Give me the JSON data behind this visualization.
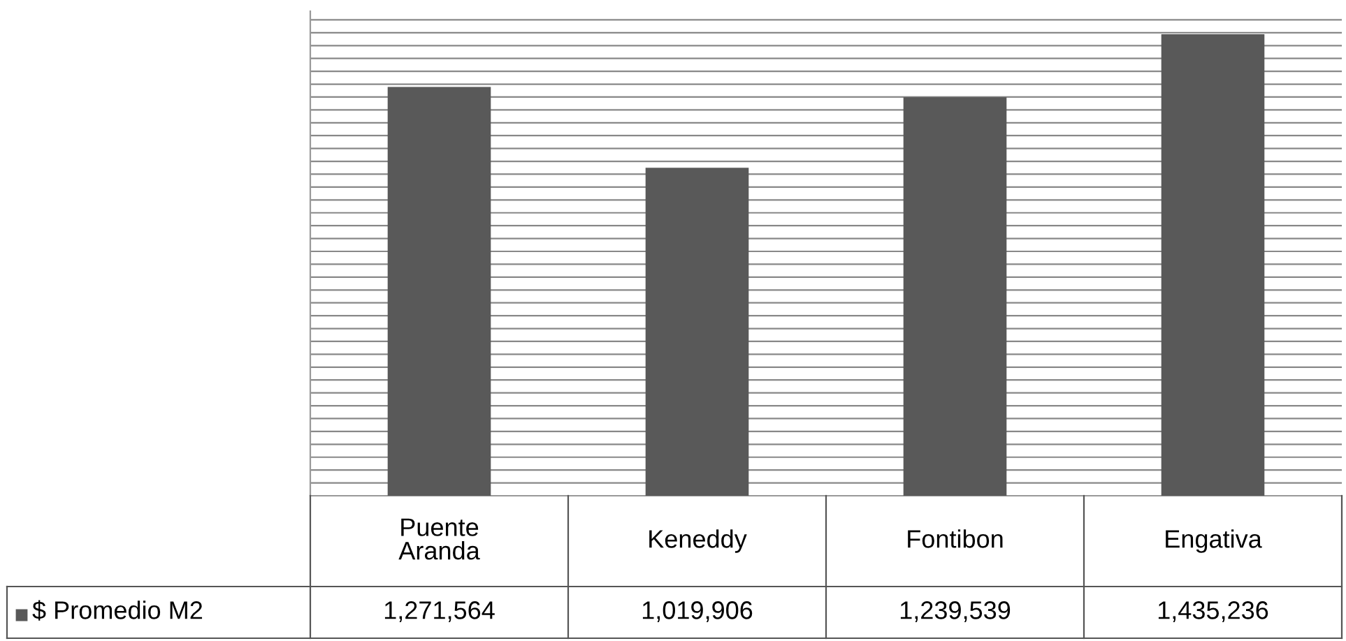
{
  "chart_data": {
    "type": "bar",
    "categories": [
      "Puente\nAranda",
      "Keneddy",
      "Fontibon",
      "Engativa"
    ],
    "series": [
      {
        "name": "$ Promedio M2",
        "color": "#595959",
        "values": [
          1271564,
          1019906,
          1239539,
          1435236
        ],
        "value_labels": [
          "1,271,564",
          "1,019,906",
          "1,239,539",
          "1,435,236"
        ]
      }
    ],
    "grid": "y",
    "legend": "bottom"
  }
}
